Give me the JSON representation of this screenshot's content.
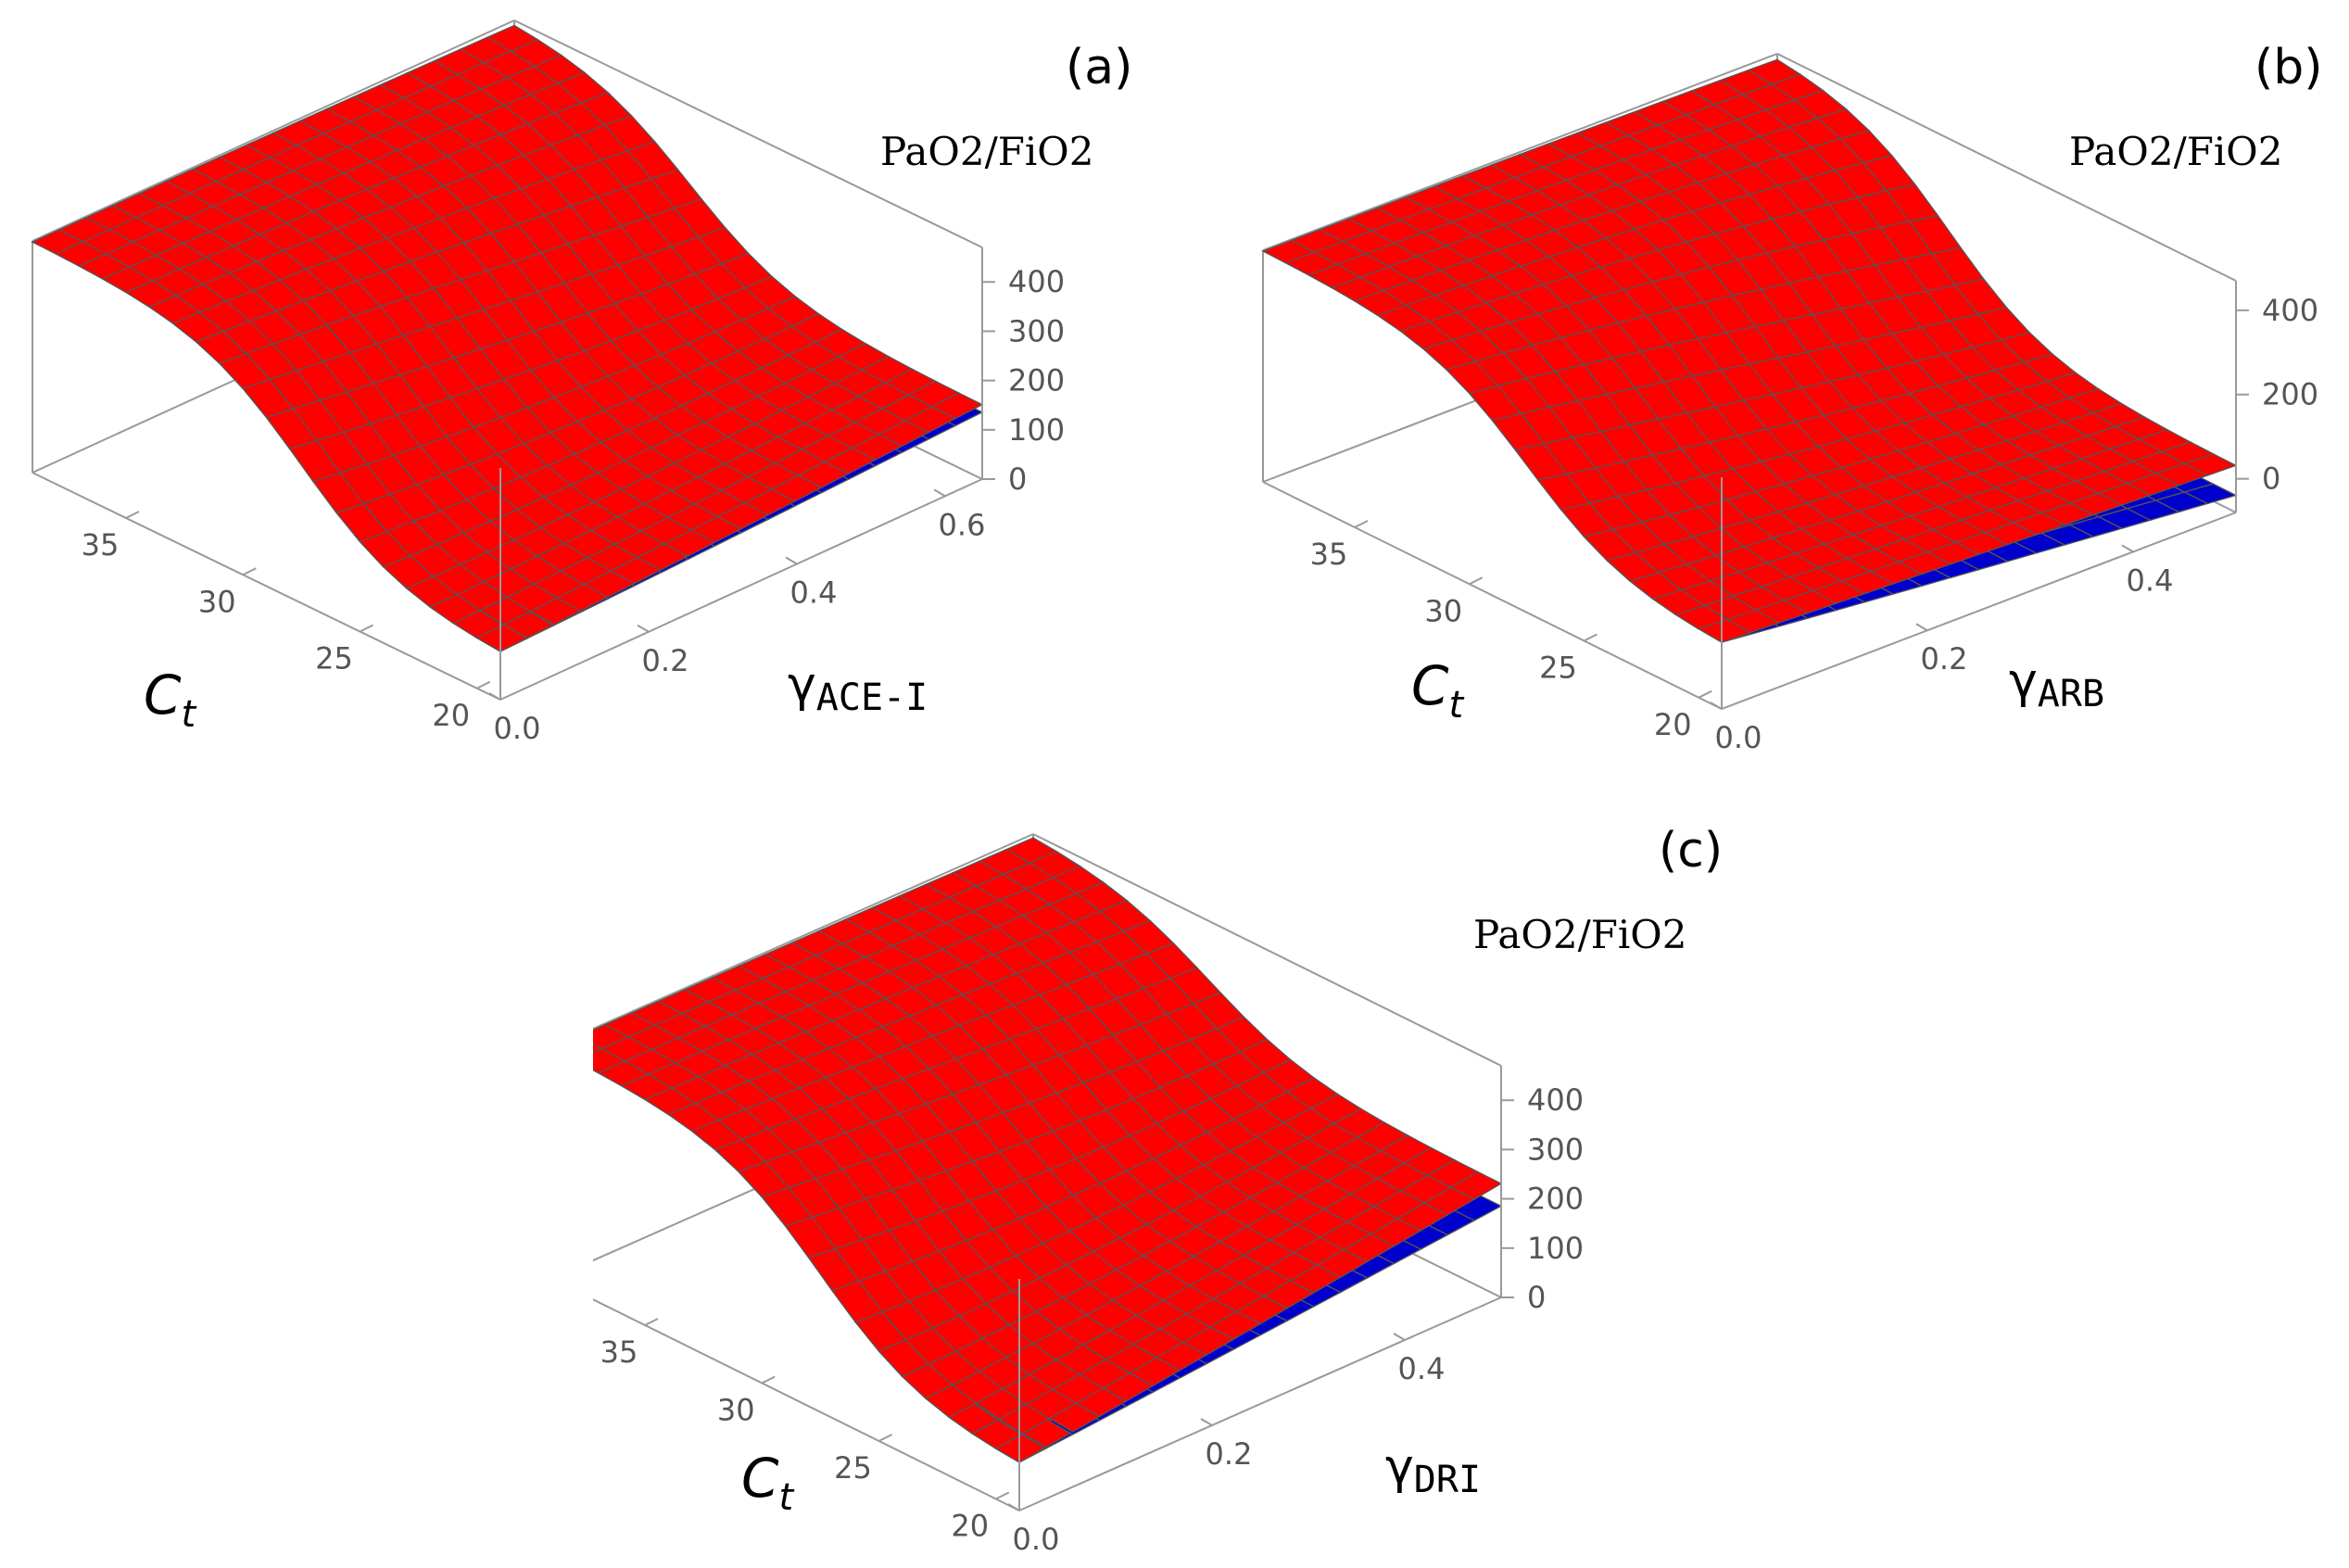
{
  "chart_data": [
    {
      "type": "surface3d",
      "panel_label": "(a)",
      "zlabel": "PaO2/FiO2",
      "xlabel": "C",
      "xlabel_sub": "t",
      "ylabel": "γ",
      "ylabel_sub": "ACE-I",
      "x_ticks": [
        "20",
        "25",
        "30",
        "35"
      ],
      "y_ticks": [
        "0.0",
        "0.2",
        "0.4",
        "0.6"
      ],
      "z_ticks": [
        "0",
        "100",
        "200",
        "300",
        "400"
      ],
      "xlim": [
        19,
        39
      ],
      "ylim": [
        0,
        0.65
      ],
      "zlim": [
        0,
        470
      ],
      "series": [
        {
          "color": "#ff0000",
          "z_at_ymin": [
            90,
            470
          ],
          "z_at_ymax": [
            150,
            470
          ]
        },
        {
          "color": "#0000cc",
          "z_at_ymin": [
            90,
            470
          ],
          "z_at_ymax": [
            135,
            330
          ]
        }
      ]
    },
    {
      "type": "surface3d",
      "panel_label": "(b)",
      "zlabel": "PaO2/FiO2",
      "xlabel": "C",
      "xlabel_sub": "t",
      "ylabel": "γ",
      "ylabel_sub": "ARB",
      "x_ticks": [
        "20",
        "25",
        "30",
        "35"
      ],
      "y_ticks": [
        "0.0",
        "0.2",
        "0.4"
      ],
      "z_ticks": [
        "0",
        "200",
        "400"
      ],
      "xlim": [
        19,
        39
      ],
      "ylim": [
        0,
        0.5
      ],
      "zlim": [
        -80,
        470
      ],
      "series": [
        {
          "color": "#ff0000",
          "z_at_ymin": [
            70,
            470
          ],
          "z_at_ymax": [
            30,
            470
          ]
        },
        {
          "color": "#0000cc",
          "z_at_ymin": [
            70,
            470
          ],
          "z_at_ymax": [
            -40,
            160
          ]
        }
      ]
    },
    {
      "type": "surface3d",
      "panel_label": "(c)",
      "zlabel": "PaO2/FiO2",
      "xlabel": "C",
      "xlabel_sub": "t",
      "ylabel": "γ",
      "ylabel_sub": "DRI",
      "x_ticks": [
        "20",
        "25",
        "30",
        "35"
      ],
      "y_ticks": [
        "0.0",
        "0.2",
        "0.4"
      ],
      "z_ticks": [
        "0",
        "100",
        "200",
        "300",
        "400"
      ],
      "xlim": [
        19,
        39
      ],
      "ylim": [
        0,
        0.5
      ],
      "zlim": [
        0,
        470
      ],
      "series": [
        {
          "color": "#ff0000",
          "z_at_ymin": [
            90,
            470
          ],
          "z_at_ymax": [
            230,
            470
          ]
        },
        {
          "color": "#0000cc",
          "z_at_ymin": [
            90,
            470
          ],
          "z_at_ymax": [
            185,
            280
          ]
        }
      ]
    }
  ]
}
